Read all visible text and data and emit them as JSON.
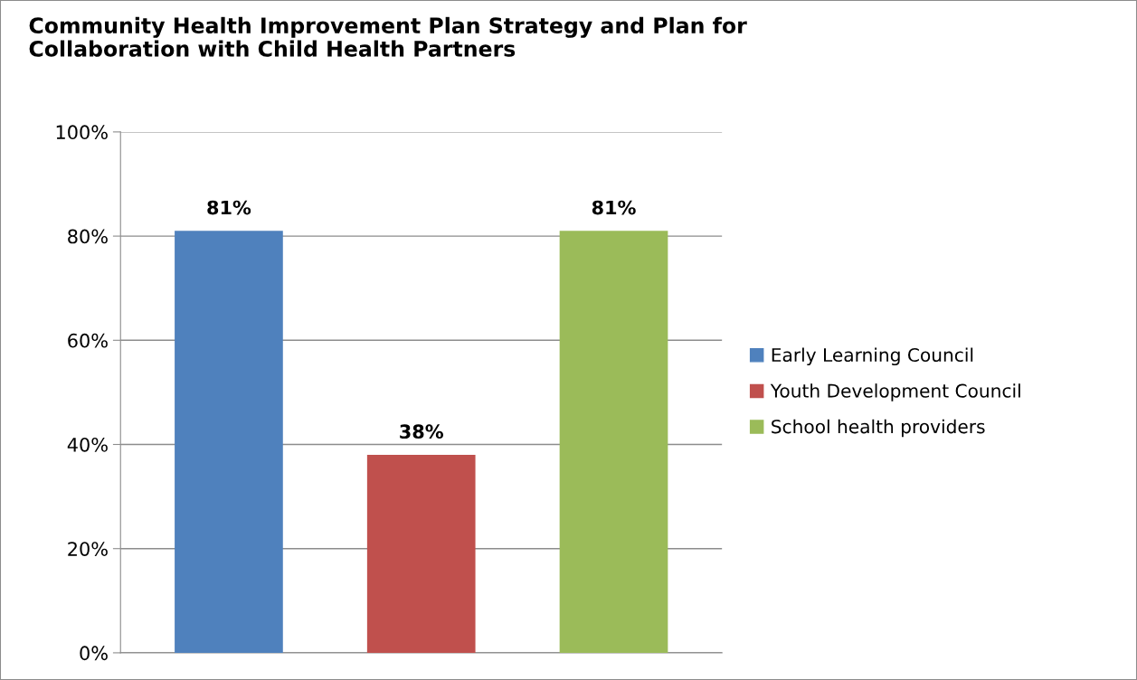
{
  "chart_data": {
    "type": "bar",
    "title": "Community Health Improvement Plan Strategy and Plan for\nCollaboration with Child Health Partners",
    "categories": [
      null
    ],
    "series": [
      {
        "name": "Early Learning Council",
        "color": "#4f81bd",
        "values": [
          81
        ],
        "value_labels": [
          "81%"
        ]
      },
      {
        "name": "Youth Development Council",
        "color": "#c0504d",
        "values": [
          38
        ],
        "value_labels": [
          "38%"
        ]
      },
      {
        "name": "School health providers",
        "color": "#9bbb59",
        "values": [
          81
        ],
        "value_labels": [
          "81%"
        ]
      }
    ],
    "ylim": [
      0,
      100
    ],
    "yticks": [
      {
        "value": 0,
        "label": "0%"
      },
      {
        "value": 20,
        "label": "20%"
      },
      {
        "value": 40,
        "label": "40%"
      },
      {
        "value": 60,
        "label": "60%"
      },
      {
        "value": 80,
        "label": "80%"
      },
      {
        "value": 100,
        "label": "100%"
      }
    ],
    "grid": "y",
    "legend": "right"
  }
}
